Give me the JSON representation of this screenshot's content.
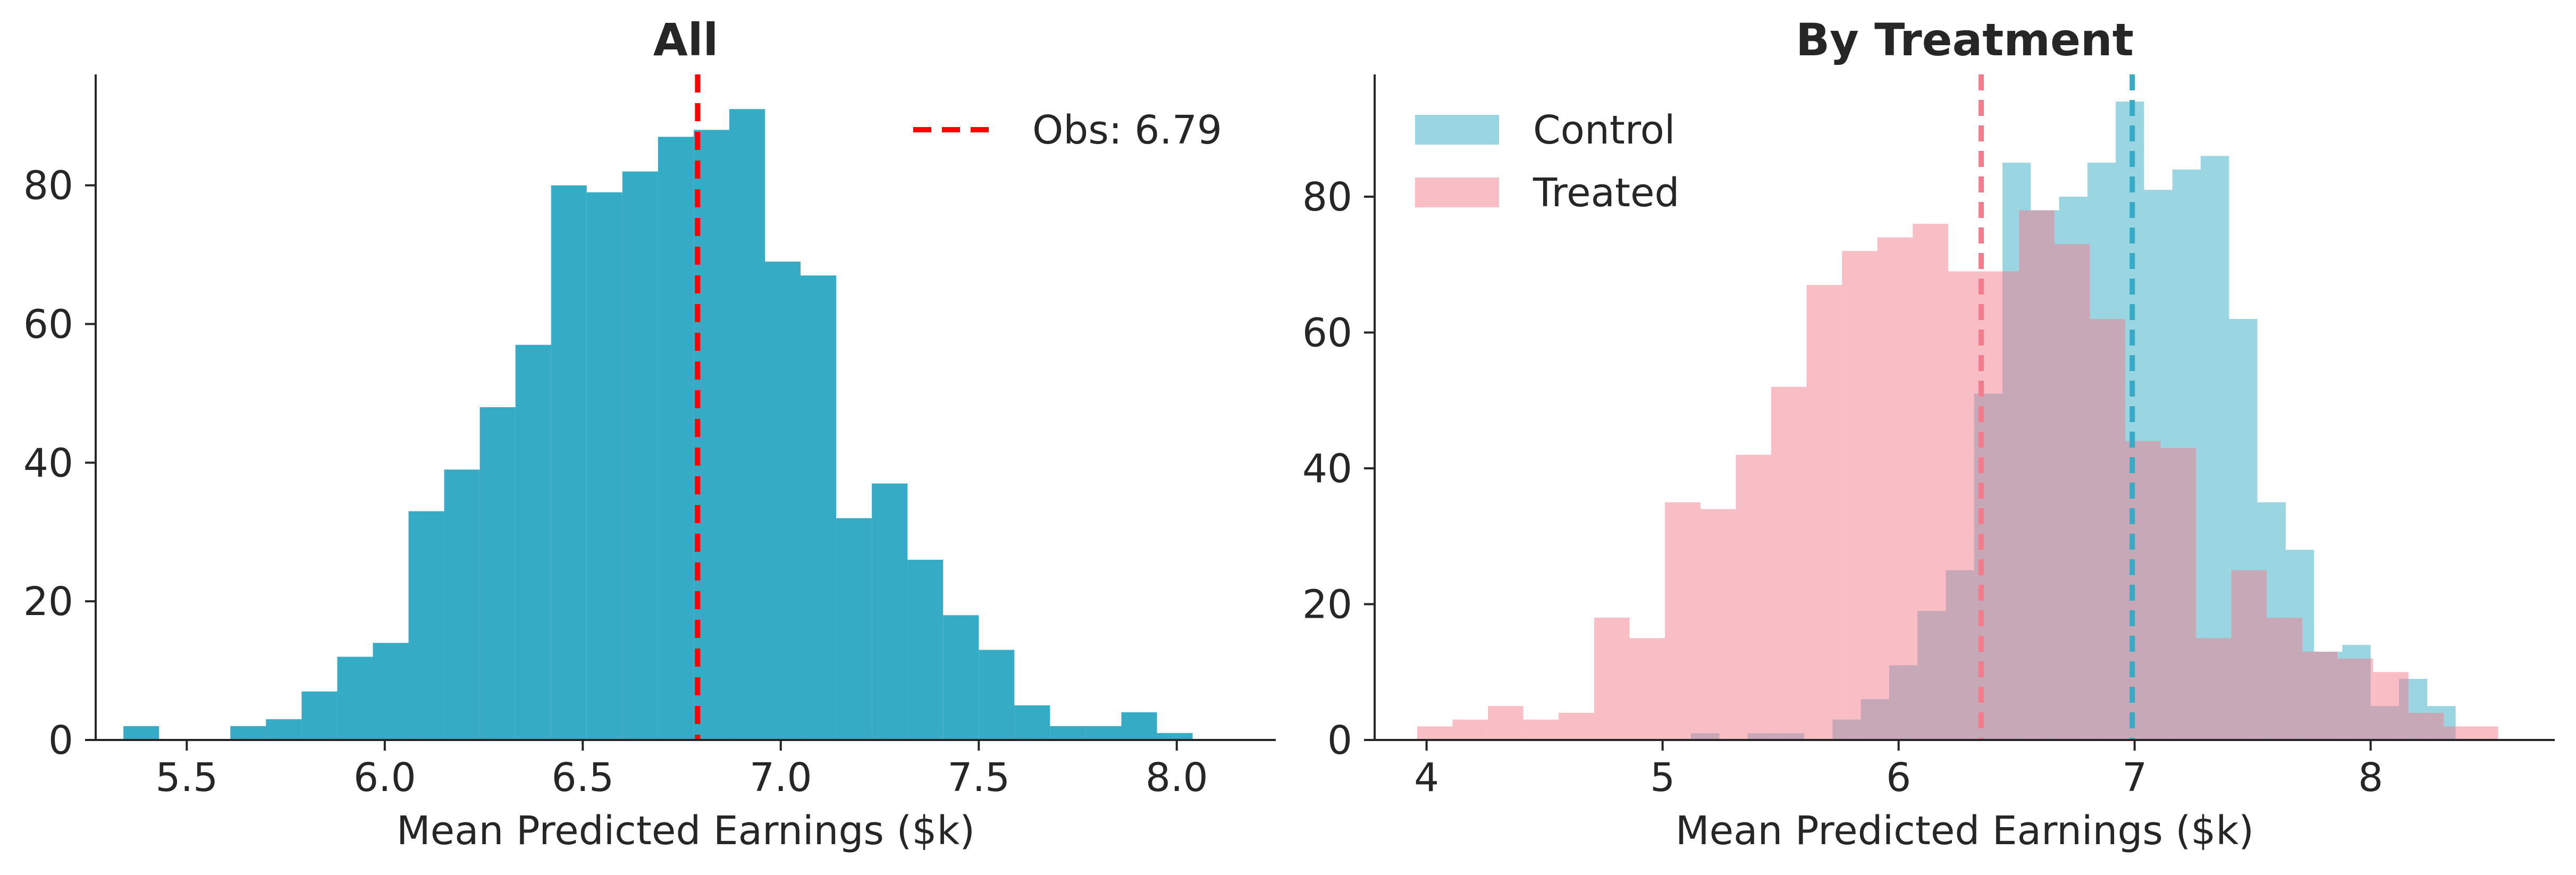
{
  "colors": {
    "all": "#36abc6",
    "control": "#36abc6",
    "treated": "#f37b8c",
    "obs_line": "#ff0000",
    "axis": "#262626"
  },
  "chart_data": [
    {
      "type": "bar",
      "title": "All",
      "xlabel": "Mean Predicted Earnings ($k)",
      "ylabel": "",
      "xlim": [
        5.27,
        8.25
      ],
      "ylim": [
        0,
        96
      ],
      "xticks": [
        "5.5",
        "6.0",
        "6.5",
        "7.0",
        "7.5",
        "8.0"
      ],
      "xtick_values": [
        5.5,
        6.0,
        6.5,
        7.0,
        7.5,
        8.0
      ],
      "yticks": [
        "0",
        "20",
        "40",
        "60",
        "80"
      ],
      "ytick_values": [
        0,
        20,
        40,
        60,
        80
      ],
      "series": [
        {
          "key": "all",
          "bin_edges": [
            5.34,
            5.43,
            5.52,
            5.61,
            5.7,
            5.79,
            5.88,
            5.97,
            6.06,
            6.15,
            6.24,
            6.33,
            6.42,
            6.51,
            6.6,
            6.69,
            6.78,
            6.87,
            6.96,
            7.05,
            7.14,
            7.23,
            7.32,
            7.41,
            7.5,
            7.59,
            7.68,
            7.77,
            7.86,
            7.95,
            8.04,
            8.13
          ],
          "counts": [
            2,
            0,
            0,
            2,
            3,
            7,
            12,
            14,
            33,
            39,
            48,
            57,
            80,
            79,
            82,
            87,
            88,
            91,
            69,
            67,
            32,
            37,
            26,
            18,
            13,
            5,
            2,
            2,
            4,
            1,
            0
          ]
        }
      ],
      "reference_line": {
        "x": 6.79,
        "label": "Obs: 6.79"
      },
      "legend": "top-right",
      "grid": false
    },
    {
      "type": "bar",
      "title": "By Treatment",
      "xlabel": "Mean Predicted Earnings ($k)",
      "ylabel": "",
      "xlim": [
        3.78,
        8.78
      ],
      "ylim": [
        0,
        98
      ],
      "xticks": [
        "4",
        "5",
        "6",
        "7",
        "8"
      ],
      "xtick_values": [
        4,
        5,
        6,
        7,
        8
      ],
      "yticks": [
        "0",
        "20",
        "40",
        "60",
        "80"
      ],
      "ytick_values": [
        0,
        20,
        40,
        60,
        80
      ],
      "series": [
        {
          "key": "control",
          "name": "Control",
          "bin_edges": [
            5.0,
            5.12,
            5.24,
            5.36,
            5.48,
            5.6,
            5.72,
            5.84,
            5.96,
            6.08,
            6.2,
            6.32,
            6.44,
            6.56,
            6.68,
            6.8,
            6.92,
            7.04,
            7.16,
            7.28,
            7.4,
            7.52,
            7.64,
            7.76,
            7.88,
            8.0,
            8.12,
            8.24,
            8.36
          ],
          "counts": [
            0,
            1,
            0,
            1,
            1,
            0,
            3,
            6,
            11,
            19,
            25,
            51,
            85,
            78,
            80,
            85,
            94,
            81,
            84,
            86,
            62,
            35,
            28,
            13,
            14,
            5,
            9,
            5
          ]
        },
        {
          "key": "treated",
          "name": "Treated",
          "bin_edges": [
            3.96,
            4.11,
            4.26,
            4.41,
            4.56,
            4.71,
            4.86,
            5.01,
            5.16,
            5.31,
            5.46,
            5.61,
            5.76,
            5.91,
            6.06,
            6.21,
            6.36,
            6.51,
            6.66,
            6.81,
            6.96,
            7.11,
            7.26,
            7.41,
            7.56,
            7.71,
            7.86,
            8.01,
            8.16,
            8.31,
            8.46,
            8.54
          ],
          "counts": [
            2,
            3,
            5,
            3,
            4,
            18,
            15,
            35,
            34,
            42,
            52,
            67,
            72,
            74,
            76,
            69,
            69,
            78,
            73,
            62,
            44,
            43,
            15,
            25,
            18,
            13,
            12,
            10,
            4,
            2,
            2
          ]
        }
      ],
      "reference_lines": [
        {
          "x": 6.35,
          "series": "treated"
        },
        {
          "x": 6.99,
          "series": "control"
        }
      ],
      "legend": "top-left",
      "grid": false
    }
  ]
}
